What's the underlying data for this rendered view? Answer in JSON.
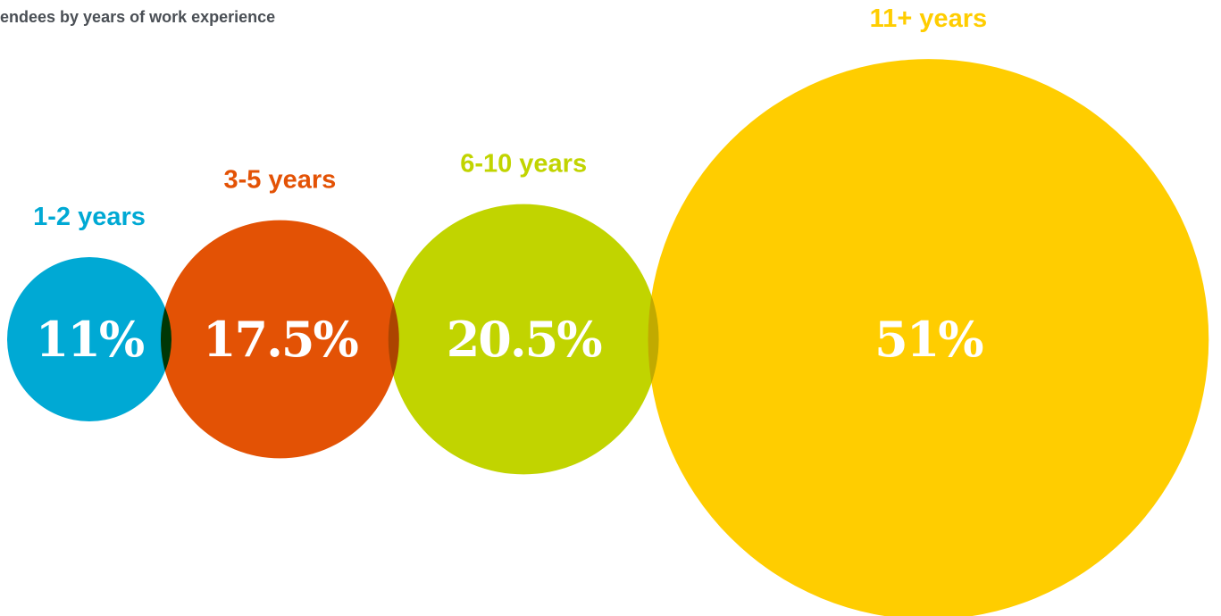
{
  "chart_data": {
    "type": "bubble",
    "title": "endees by years of work experience",
    "categories": [
      "1-2 years",
      "3-5 years",
      "6-10 years",
      "11+ years"
    ],
    "values": [
      11,
      17.5,
      20.5,
      51
    ],
    "value_labels": [
      "11%",
      "17.5%",
      "20.5%",
      "51%"
    ],
    "colors": [
      "#00a9d4",
      "#e35205",
      "#c1d400",
      "#ffcd00"
    ]
  }
}
